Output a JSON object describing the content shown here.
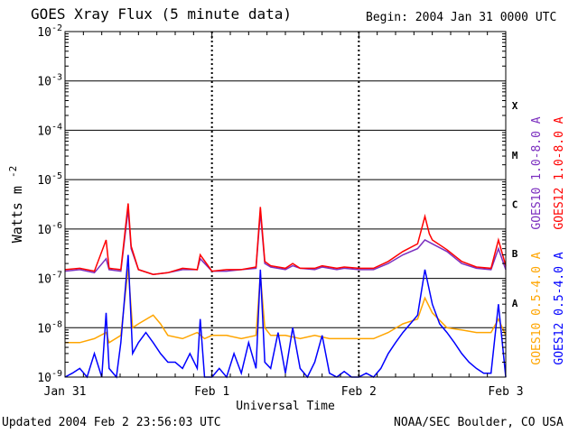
{
  "title": "GOES Xray Flux (5 minute data)",
  "begin": "Begin:  2004 Jan 31 0000 UTC",
  "updated": "Updated 2004 Feb  2 23:56:03 UTC",
  "credit": "NOAA/SEC Boulder, CO USA",
  "chart_data": {
    "type": "line",
    "title": "GOES Xray Flux (5 minute data)",
    "xlabel": "Universal Time",
    "ylabel": "Watts m",
    "ylabel_sup": "-2",
    "y_scale": "log",
    "ylim": [
      1e-09,
      0.01
    ],
    "y_ticks": [
      {
        "exp": "-2",
        "value": 0.01
      },
      {
        "exp": "-3",
        "value": 0.001
      },
      {
        "exp": "-4",
        "value": 0.0001
      },
      {
        "exp": "-5",
        "value": 1e-05
      },
      {
        "exp": "-6",
        "value": 1e-06
      },
      {
        "exp": "-7",
        "value": 1e-07
      },
      {
        "exp": "-8",
        "value": 1e-08
      },
      {
        "exp": "-9",
        "value": 1e-09
      }
    ],
    "x_ticks": [
      "Jan 31",
      "Feb 1",
      "Feb 2",
      "Feb 3"
    ],
    "xlim_days": [
      0,
      3
    ],
    "class_labels": [
      {
        "label": "X",
        "low": 0.0001,
        "high": 0.001
      },
      {
        "label": "M",
        "low": 1e-05,
        "high": 0.0001
      },
      {
        "label": "C",
        "low": 1e-06,
        "high": 1e-05
      },
      {
        "label": "B",
        "low": 1e-07,
        "high": 1e-06
      },
      {
        "label": "A",
        "low": 1e-08,
        "high": 1e-07
      }
    ],
    "legend_placement": "right",
    "series": [
      {
        "name": "GOES10 1.0-8.0 A",
        "color": "#7b2fbf",
        "points": [
          [
            0.0,
            1.4e-07
          ],
          [
            0.1,
            1.5e-07
          ],
          [
            0.2,
            1.3e-07
          ],
          [
            0.28,
            2.5e-07
          ],
          [
            0.3,
            1.5e-07
          ],
          [
            0.38,
            1.4e-07
          ],
          [
            0.43,
            2.5e-06
          ],
          [
            0.45,
            4e-07
          ],
          [
            0.5,
            1.5e-07
          ],
          [
            0.6,
            1.2e-07
          ],
          [
            0.7,
            1.3e-07
          ],
          [
            0.8,
            1.5e-07
          ],
          [
            0.9,
            1.5e-07
          ],
          [
            0.92,
            2.5e-07
          ],
          [
            1.0,
            1.4e-07
          ],
          [
            1.1,
            1.4e-07
          ],
          [
            1.2,
            1.5e-07
          ],
          [
            1.3,
            1.6e-07
          ],
          [
            1.33,
            2.2e-06
          ],
          [
            1.36,
            2e-07
          ],
          [
            1.4,
            1.7e-07
          ],
          [
            1.5,
            1.5e-07
          ],
          [
            1.55,
            1.8e-07
          ],
          [
            1.6,
            1.6e-07
          ],
          [
            1.7,
            1.5e-07
          ],
          [
            1.75,
            1.7e-07
          ],
          [
            1.85,
            1.5e-07
          ],
          [
            1.9,
            1.6e-07
          ],
          [
            2.0,
            1.5e-07
          ],
          [
            2.1,
            1.5e-07
          ],
          [
            2.2,
            2e-07
          ],
          [
            2.3,
            3e-07
          ],
          [
            2.4,
            4e-07
          ],
          [
            2.45,
            6e-07
          ],
          [
            2.5,
            5e-07
          ],
          [
            2.6,
            3.5e-07
          ],
          [
            2.7,
            2e-07
          ],
          [
            2.8,
            1.6e-07
          ],
          [
            2.9,
            1.5e-07
          ],
          [
            2.95,
            4e-07
          ],
          [
            3.0,
            1.5e-07
          ]
        ]
      },
      {
        "name": "GOES12 1.0-8.0 A",
        "color": "#ff0000",
        "points": [
          [
            0.0,
            1.5e-07
          ],
          [
            0.1,
            1.6e-07
          ],
          [
            0.2,
            1.4e-07
          ],
          [
            0.28,
            6e-07
          ],
          [
            0.3,
            1.6e-07
          ],
          [
            0.38,
            1.5e-07
          ],
          [
            0.43,
            3.3e-06
          ],
          [
            0.45,
            4.5e-07
          ],
          [
            0.5,
            1.5e-07
          ],
          [
            0.6,
            1.2e-07
          ],
          [
            0.7,
            1.3e-07
          ],
          [
            0.8,
            1.6e-07
          ],
          [
            0.9,
            1.5e-07
          ],
          [
            0.92,
            3e-07
          ],
          [
            1.0,
            1.4e-07
          ],
          [
            1.1,
            1.5e-07
          ],
          [
            1.2,
            1.5e-07
          ],
          [
            1.3,
            1.7e-07
          ],
          [
            1.33,
            2.8e-06
          ],
          [
            1.36,
            2.2e-07
          ],
          [
            1.4,
            1.8e-07
          ],
          [
            1.5,
            1.6e-07
          ],
          [
            1.55,
            2e-07
          ],
          [
            1.6,
            1.6e-07
          ],
          [
            1.7,
            1.6e-07
          ],
          [
            1.75,
            1.8e-07
          ],
          [
            1.85,
            1.6e-07
          ],
          [
            1.9,
            1.7e-07
          ],
          [
            2.0,
            1.6e-07
          ],
          [
            2.1,
            1.6e-07
          ],
          [
            2.2,
            2.2e-07
          ],
          [
            2.3,
            3.5e-07
          ],
          [
            2.4,
            5e-07
          ],
          [
            2.45,
            1.8e-06
          ],
          [
            2.48,
            8e-07
          ],
          [
            2.5,
            6e-07
          ],
          [
            2.6,
            3.8e-07
          ],
          [
            2.7,
            2.2e-07
          ],
          [
            2.8,
            1.7e-07
          ],
          [
            2.9,
            1.6e-07
          ],
          [
            2.95,
            6e-07
          ],
          [
            3.0,
            1.8e-07
          ]
        ]
      },
      {
        "name": "GOES10 0.5-4.0 A",
        "color": "#ffa500",
        "points": [
          [
            0.0,
            5e-09
          ],
          [
            0.1,
            5e-09
          ],
          [
            0.2,
            6e-09
          ],
          [
            0.28,
            8e-09
          ],
          [
            0.3,
            5e-09
          ],
          [
            0.38,
            7e-09
          ],
          [
            0.43,
            1.6e-07
          ],
          [
            0.46,
            1e-08
          ],
          [
            0.5,
            1.2e-08
          ],
          [
            0.6,
            1.8e-08
          ],
          [
            0.65,
            1.2e-08
          ],
          [
            0.7,
            7e-09
          ],
          [
            0.8,
            6e-09
          ],
          [
            0.9,
            8e-09
          ],
          [
            0.95,
            6e-09
          ],
          [
            1.0,
            7e-09
          ],
          [
            1.1,
            7e-09
          ],
          [
            1.2,
            6e-09
          ],
          [
            1.3,
            7e-09
          ],
          [
            1.33,
            1.2e-07
          ],
          [
            1.36,
            1e-08
          ],
          [
            1.4,
            7e-09
          ],
          [
            1.5,
            7e-09
          ],
          [
            1.6,
            6e-09
          ],
          [
            1.7,
            7e-09
          ],
          [
            1.8,
            6e-09
          ],
          [
            1.9,
            6e-09
          ],
          [
            2.0,
            6e-09
          ],
          [
            2.1,
            6e-09
          ],
          [
            2.2,
            8e-09
          ],
          [
            2.3,
            1.2e-08
          ],
          [
            2.4,
            1.5e-08
          ],
          [
            2.45,
            4e-08
          ],
          [
            2.5,
            2e-08
          ],
          [
            2.6,
            1e-08
          ],
          [
            2.7,
            9e-09
          ],
          [
            2.8,
            8e-09
          ],
          [
            2.9,
            8e-09
          ],
          [
            2.95,
            1.5e-08
          ],
          [
            3.0,
            7e-09
          ]
        ]
      },
      {
        "name": "GOES12 0.5-4.0 A",
        "color": "#0000ff",
        "points": [
          [
            0.0,
            1e-09
          ],
          [
            0.05,
            1.2e-09
          ],
          [
            0.1,
            1.5e-09
          ],
          [
            0.15,
            1e-09
          ],
          [
            0.2,
            3e-09
          ],
          [
            0.25,
            1e-09
          ],
          [
            0.28,
            2e-08
          ],
          [
            0.3,
            1.5e-09
          ],
          [
            0.35,
            1e-09
          ],
          [
            0.38,
            5e-09
          ],
          [
            0.43,
            3e-07
          ],
          [
            0.46,
            3e-09
          ],
          [
            0.5,
            5e-09
          ],
          [
            0.55,
            8e-09
          ],
          [
            0.6,
            5e-09
          ],
          [
            0.65,
            3e-09
          ],
          [
            0.7,
            2e-09
          ],
          [
            0.75,
            2e-09
          ],
          [
            0.8,
            1.5e-09
          ],
          [
            0.85,
            3e-09
          ],
          [
            0.9,
            1.5e-09
          ],
          [
            0.92,
            1.5e-08
          ],
          [
            0.95,
            1e-09
          ],
          [
            1.0,
            1e-09
          ],
          [
            1.05,
            1.5e-09
          ],
          [
            1.1,
            1e-09
          ],
          [
            1.15,
            3e-09
          ],
          [
            1.2,
            1.2e-09
          ],
          [
            1.25,
            5e-09
          ],
          [
            1.3,
            1.5e-09
          ],
          [
            1.33,
            1.5e-07
          ],
          [
            1.36,
            2e-09
          ],
          [
            1.4,
            1.5e-09
          ],
          [
            1.45,
            8e-09
          ],
          [
            1.5,
            1.2e-09
          ],
          [
            1.55,
            1e-08
          ],
          [
            1.6,
            1.5e-09
          ],
          [
            1.65,
            1e-09
          ],
          [
            1.7,
            2e-09
          ],
          [
            1.75,
            7e-09
          ],
          [
            1.8,
            1.2e-09
          ],
          [
            1.85,
            1e-09
          ],
          [
            1.9,
            1.3e-09
          ],
          [
            1.95,
            1e-09
          ],
          [
            2.0,
            1e-09
          ],
          [
            2.05,
            1.2e-09
          ],
          [
            2.1,
            1e-09
          ],
          [
            2.15,
            1.5e-09
          ],
          [
            2.2,
            3e-09
          ],
          [
            2.25,
            5e-09
          ],
          [
            2.3,
            8e-09
          ],
          [
            2.35,
            1.2e-08
          ],
          [
            2.4,
            1.8e-08
          ],
          [
            2.45,
            1.5e-07
          ],
          [
            2.5,
            3e-08
          ],
          [
            2.55,
            1.2e-08
          ],
          [
            2.6,
            8e-09
          ],
          [
            2.65,
            5e-09
          ],
          [
            2.7,
            3e-09
          ],
          [
            2.75,
            2e-09
          ],
          [
            2.8,
            1.5e-09
          ],
          [
            2.85,
            1.2e-09
          ],
          [
            2.9,
            1.2e-09
          ],
          [
            2.95,
            3e-08
          ],
          [
            3.0,
            1e-09
          ]
        ]
      }
    ]
  }
}
